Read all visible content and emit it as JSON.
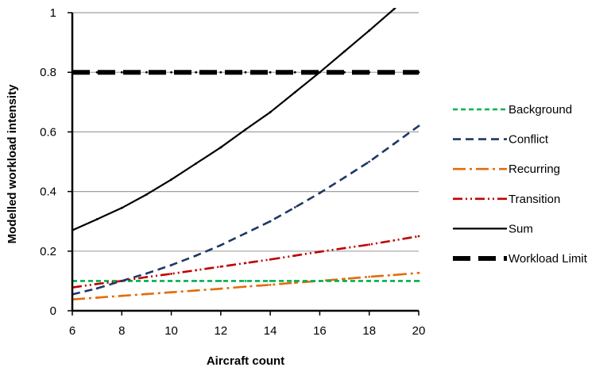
{
  "chart_data": {
    "type": "line",
    "title": "",
    "xlabel": "Aircraft count",
    "ylabel": "Modelled workload intensity",
    "xlim": [
      6,
      20
    ],
    "ylim": [
      0,
      1
    ],
    "xticks": [
      6,
      8,
      10,
      12,
      14,
      16,
      18,
      20
    ],
    "yticks": [
      0,
      0.2,
      0.4,
      0.6,
      0.8,
      1
    ],
    "ytick_labels": [
      "0",
      "0.2",
      "0.4",
      "0.6",
      "0.8",
      "1"
    ],
    "grid": "horizontal",
    "legend_position": "right",
    "x": [
      6,
      7,
      8,
      9,
      10,
      11,
      12,
      13,
      14,
      15,
      16,
      17,
      18,
      19,
      20
    ],
    "series": [
      {
        "name": "Background",
        "color": "#00b050",
        "style": "short-dash",
        "values": [
          0.1,
          0.1,
          0.1,
          0.1,
          0.1,
          0.1,
          0.1,
          0.1,
          0.1,
          0.1,
          0.1,
          0.1,
          0.1,
          0.1,
          0.1
        ]
      },
      {
        "name": "Conflict",
        "color": "#1f3864",
        "style": "dash",
        "values": [
          0.055,
          0.075,
          0.1,
          0.125,
          0.153,
          0.185,
          0.22,
          0.26,
          0.3,
          0.347,
          0.395,
          0.447,
          0.5,
          0.56,
          0.62
        ]
      },
      {
        "name": "Recurring",
        "color": "#e36c09",
        "style": "long-dash-dot",
        "values": [
          0.038,
          0.044,
          0.05,
          0.056,
          0.062,
          0.068,
          0.074,
          0.081,
          0.087,
          0.094,
          0.1,
          0.107,
          0.114,
          0.12,
          0.127
        ]
      },
      {
        "name": "Transition",
        "color": "#c00000",
        "style": "dash-dot-dot",
        "values": [
          0.078,
          0.09,
          0.1,
          0.113,
          0.124,
          0.136,
          0.148,
          0.16,
          0.172,
          0.185,
          0.198,
          0.21,
          0.222,
          0.236,
          0.25
        ]
      },
      {
        "name": "Sum",
        "color": "#000000",
        "style": "solid",
        "values": [
          0.27,
          0.307,
          0.345,
          0.39,
          0.44,
          0.494,
          0.548,
          0.608,
          0.666,
          0.733,
          0.8,
          0.87,
          0.94,
          1.012,
          1.09
        ]
      },
      {
        "name": "Workload Limit",
        "color": "#000000",
        "style": "heavy-dash",
        "values": [
          0.8,
          0.8,
          0.8,
          0.8,
          0.8,
          0.8,
          0.8,
          0.8,
          0.8,
          0.8,
          0.8,
          0.8,
          0.8,
          0.8,
          0.8
        ]
      }
    ]
  }
}
